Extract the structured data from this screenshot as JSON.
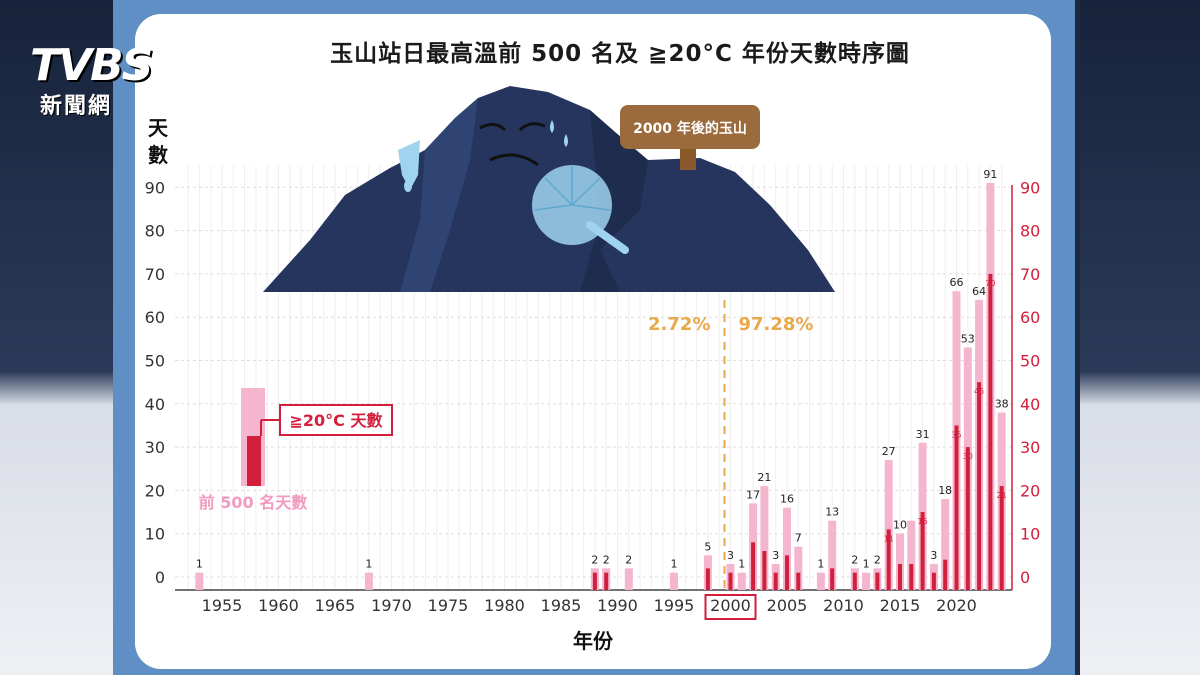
{
  "logo": {
    "main": "TVBS",
    "sub": "新聞網"
  },
  "sign_text": "2000 年後的玉山",
  "chart_data": {
    "type": "bar",
    "title": "玉山站日最高溫前 500 名及 ≧20°C 年份天數時序圖",
    "ylabel": "天數",
    "xlabel": "年份",
    "ylim": [
      0,
      95
    ],
    "y_ticks": [
      0,
      10,
      20,
      30,
      40,
      50,
      60,
      70,
      80,
      90
    ],
    "x_ticks": [
      1955,
      1960,
      1965,
      1970,
      1975,
      1980,
      1985,
      1990,
      1995,
      2000,
      2005,
      2010,
      2015,
      2020
    ],
    "highlight_tick": 2000,
    "grid": true,
    "divider_year": 2000,
    "before_pct": "2.72%",
    "after_pct": "97.28%",
    "legend": {
      "top500": "前 500 名天數",
      "ge20": "≧20°C 天數"
    },
    "colors": {
      "top500": "#f4b6cf",
      "ge20": "#d21f3c",
      "divider": "#e8a94a",
      "pct": "#e8a94a"
    },
    "series": [
      {
        "name": "前 500 名天數",
        "points": [
          [
            1953,
            1
          ],
          [
            1968,
            1
          ],
          [
            1988,
            2
          ],
          [
            1989,
            2
          ],
          [
            1991,
            2
          ],
          [
            1995,
            1
          ],
          [
            1998,
            5
          ],
          [
            2000,
            3
          ],
          [
            2001,
            1
          ],
          [
            2002,
            17
          ],
          [
            2003,
            21
          ],
          [
            2004,
            3
          ],
          [
            2005,
            16
          ],
          [
            2006,
            7
          ],
          [
            2008,
            1
          ],
          [
            2009,
            13
          ],
          [
            2011,
            2
          ],
          [
            2012,
            1
          ],
          [
            2013,
            2
          ],
          [
            2014,
            27
          ],
          [
            2015,
            10
          ],
          [
            2016,
            13
          ],
          [
            2017,
            31
          ],
          [
            2018,
            3
          ],
          [
            2019,
            18
          ],
          [
            2020,
            66
          ],
          [
            2021,
            53
          ],
          [
            2022,
            64
          ],
          [
            2023,
            91
          ],
          [
            2024,
            38
          ]
        ]
      },
      {
        "name": "≧20°C 天數",
        "points": [
          [
            1988,
            1
          ],
          [
            1989,
            1
          ],
          [
            1998,
            2
          ],
          [
            2000,
            1
          ],
          [
            2002,
            8
          ],
          [
            2003,
            6
          ],
          [
            2004,
            1
          ],
          [
            2005,
            5
          ],
          [
            2006,
            1
          ],
          [
            2009,
            2
          ],
          [
            2011,
            1
          ],
          [
            2013,
            1
          ],
          [
            2014,
            11
          ],
          [
            2015,
            3
          ],
          [
            2016,
            3
          ],
          [
            2017,
            15
          ],
          [
            2018,
            1
          ],
          [
            2019,
            4
          ],
          [
            2020,
            35
          ],
          [
            2021,
            30
          ],
          [
            2022,
            45
          ],
          [
            2023,
            70
          ],
          [
            2024,
            21
          ]
        ]
      }
    ],
    "top500_labels": [
      [
        1953,
        "1"
      ],
      [
        1968,
        "1"
      ],
      [
        1988,
        "2"
      ],
      [
        1989,
        "2"
      ],
      [
        1991,
        "2"
      ],
      [
        1995,
        "1"
      ],
      [
        1998,
        "5"
      ],
      [
        2000,
        "3"
      ],
      [
        2001,
        "1"
      ],
      [
        2002,
        "17"
      ],
      [
        2003,
        "21"
      ],
      [
        2004,
        "3"
      ],
      [
        2005,
        "16"
      ],
      [
        2006,
        "7"
      ],
      [
        2008,
        "1"
      ],
      [
        2009,
        "13"
      ],
      [
        2011,
        "2"
      ],
      [
        2012,
        "1"
      ],
      [
        2013,
        "2"
      ],
      [
        2014,
        "27"
      ],
      [
        2015,
        "10"
      ],
      [
        2017,
        "31"
      ],
      [
        2018,
        "3"
      ],
      [
        2019,
        "18"
      ],
      [
        2020,
        "66"
      ],
      [
        2021,
        "53"
      ],
      [
        2022,
        "64"
      ],
      [
        2023,
        "91"
      ],
      [
        2024,
        "38"
      ]
    ],
    "ge20_labels": [
      [
        1988,
        "1"
      ],
      [
        1989,
        "1"
      ],
      [
        1998,
        "2"
      ],
      [
        2000,
        "1"
      ],
      [
        2002,
        "8"
      ],
      [
        2003,
        "6"
      ],
      [
        2004,
        "1"
      ],
      [
        2005,
        "5"
      ],
      [
        2006,
        "1"
      ],
      [
        2009,
        "2"
      ],
      [
        2011,
        "1"
      ],
      [
        2013,
        "1"
      ],
      [
        2014,
        "11"
      ],
      [
        2015,
        "3"
      ],
      [
        2016,
        "3"
      ],
      [
        2017,
        "15"
      ],
      [
        2018,
        "1"
      ],
      [
        2019,
        "4"
      ],
      [
        2020,
        "35"
      ],
      [
        2021,
        "30"
      ],
      [
        2022,
        "45"
      ],
      [
        2023,
        "70"
      ],
      [
        2024,
        "21"
      ]
    ]
  }
}
